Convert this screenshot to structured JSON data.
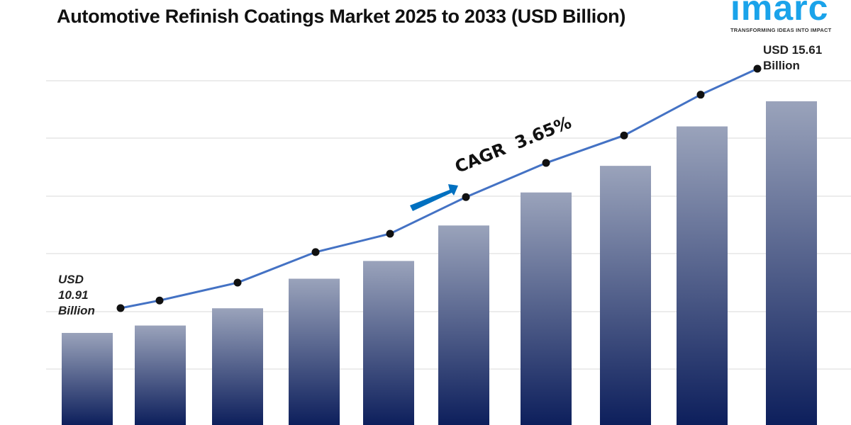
{
  "title": "Automotive Refinish Coatings Market 2025 to 2033 (USD Billion)",
  "logo": {
    "word": "imarc",
    "tagline": "TRANSFORMING IDEAS INTO IMPACT",
    "color": "#1aa3ea"
  },
  "chart_data": {
    "type": "bar",
    "title": "Automotive Refinish Coatings Market 2025 to 2033 (USD Billion)",
    "values": [
      10.91,
      11.06,
      11.41,
      12.01,
      12.37,
      13.09,
      13.76,
      14.3,
      15.1,
      15.61
    ],
    "grid": true,
    "annotations": {
      "start_label": [
        "USD",
        "10.91",
        "Billion"
      ],
      "end_label": [
        "USD 15.61",
        "Billion"
      ],
      "cagr": "CAGR  3.65%"
    },
    "colors": {
      "bar_top": "#9aa3bb",
      "bar_bottom": "#0d1f5c",
      "line": "#4472c4",
      "arrow": "#0070c0",
      "marker": "#111111"
    }
  }
}
